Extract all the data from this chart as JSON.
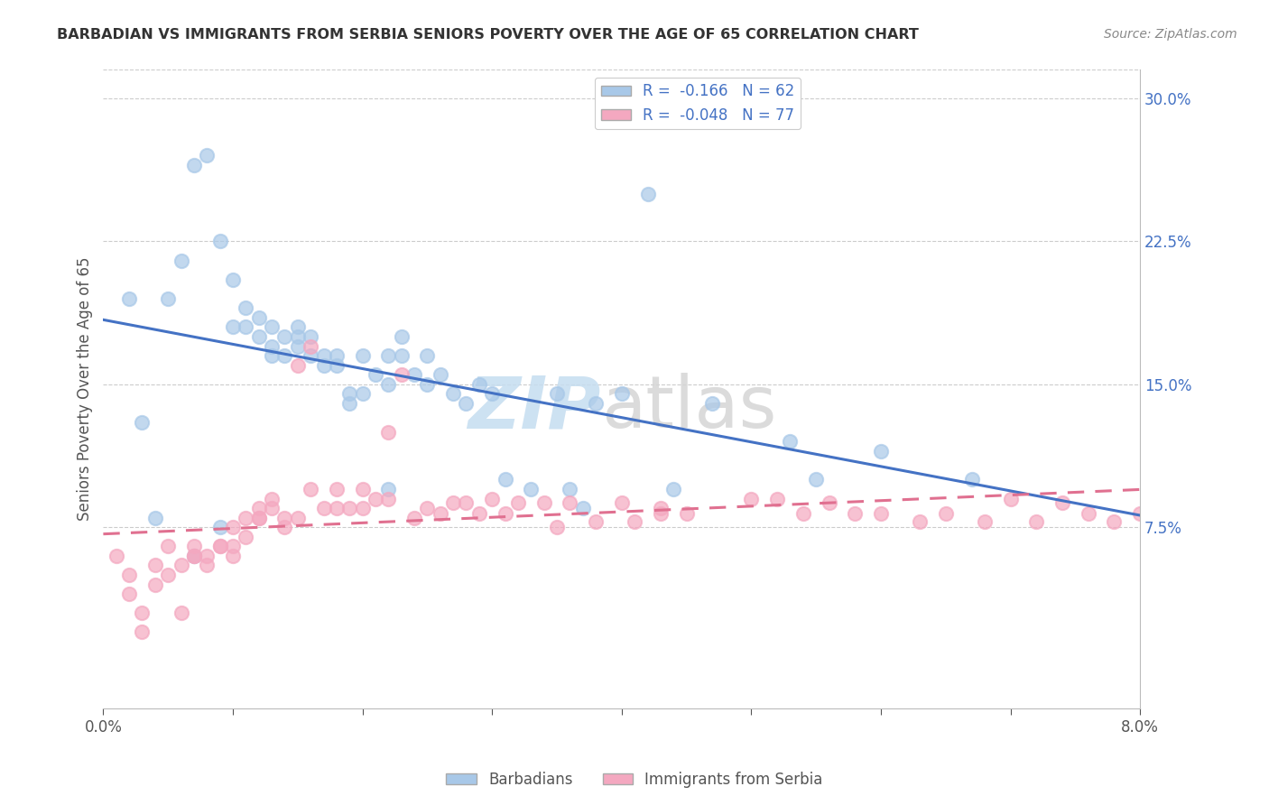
{
  "title": "BARBADIAN VS IMMIGRANTS FROM SERBIA SENIORS POVERTY OVER THE AGE OF 65 CORRELATION CHART",
  "source": "Source: ZipAtlas.com",
  "ylabel": "Seniors Poverty Over the Age of 65",
  "x_min": 0.0,
  "x_max": 0.08,
  "y_min": -0.02,
  "y_max": 0.315,
  "y_ticks_right": [
    0.075,
    0.15,
    0.225,
    0.3
  ],
  "y_tick_labels_right": [
    "7.5%",
    "15.0%",
    "22.5%",
    "30.0%"
  ],
  "legend_label_blue": "R =  -0.166   N = 62",
  "legend_label_pink": "R =  -0.048   N = 77",
  "blue_color": "#A8C8E8",
  "pink_color": "#F4A8C0",
  "line_blue": "#4472C4",
  "line_pink": "#E07090",
  "barbadians_x": [
    0.005,
    0.006,
    0.007,
    0.008,
    0.009,
    0.01,
    0.01,
    0.011,
    0.011,
    0.012,
    0.012,
    0.013,
    0.013,
    0.013,
    0.014,
    0.014,
    0.015,
    0.015,
    0.015,
    0.016,
    0.016,
    0.017,
    0.017,
    0.018,
    0.018,
    0.019,
    0.019,
    0.02,
    0.02,
    0.021,
    0.022,
    0.022,
    0.023,
    0.023,
    0.024,
    0.025,
    0.025,
    0.026,
    0.027,
    0.028,
    0.029,
    0.03,
    0.031,
    0.033,
    0.035,
    0.036,
    0.037,
    0.038,
    0.04,
    0.042,
    0.044,
    0.047,
    0.053,
    0.055,
    0.06,
    0.067,
    0.002,
    0.003,
    0.004,
    0.007,
    0.009,
    0.022
  ],
  "barbadians_y": [
    0.195,
    0.215,
    0.265,
    0.27,
    0.225,
    0.18,
    0.205,
    0.19,
    0.18,
    0.175,
    0.185,
    0.17,
    0.165,
    0.18,
    0.175,
    0.165,
    0.18,
    0.175,
    0.17,
    0.165,
    0.175,
    0.16,
    0.165,
    0.165,
    0.16,
    0.145,
    0.14,
    0.145,
    0.165,
    0.155,
    0.165,
    0.15,
    0.165,
    0.175,
    0.155,
    0.15,
    0.165,
    0.155,
    0.145,
    0.14,
    0.15,
    0.145,
    0.1,
    0.095,
    0.145,
    0.095,
    0.085,
    0.14,
    0.145,
    0.25,
    0.095,
    0.14,
    0.12,
    0.1,
    0.115,
    0.1,
    0.195,
    0.13,
    0.08,
    0.06,
    0.075,
    0.095
  ],
  "serbia_x": [
    0.001,
    0.002,
    0.002,
    0.003,
    0.003,
    0.004,
    0.004,
    0.005,
    0.005,
    0.006,
    0.006,
    0.007,
    0.007,
    0.007,
    0.008,
    0.008,
    0.009,
    0.009,
    0.01,
    0.01,
    0.01,
    0.011,
    0.011,
    0.012,
    0.012,
    0.012,
    0.013,
    0.013,
    0.014,
    0.014,
    0.015,
    0.015,
    0.016,
    0.016,
    0.017,
    0.018,
    0.018,
    0.019,
    0.02,
    0.02,
    0.021,
    0.022,
    0.022,
    0.023,
    0.024,
    0.025,
    0.026,
    0.027,
    0.028,
    0.029,
    0.03,
    0.031,
    0.032,
    0.034,
    0.036,
    0.038,
    0.04,
    0.041,
    0.043,
    0.045,
    0.05,
    0.052,
    0.054,
    0.056,
    0.058,
    0.06,
    0.063,
    0.065,
    0.068,
    0.07,
    0.072,
    0.074,
    0.076,
    0.078,
    0.08,
    0.035,
    0.043
  ],
  "serbia_y": [
    0.06,
    0.05,
    0.04,
    0.03,
    0.02,
    0.045,
    0.055,
    0.065,
    0.05,
    0.03,
    0.055,
    0.06,
    0.065,
    0.06,
    0.055,
    0.06,
    0.065,
    0.065,
    0.06,
    0.065,
    0.075,
    0.07,
    0.08,
    0.08,
    0.085,
    0.08,
    0.085,
    0.09,
    0.075,
    0.08,
    0.08,
    0.16,
    0.17,
    0.095,
    0.085,
    0.095,
    0.085,
    0.085,
    0.085,
    0.095,
    0.09,
    0.125,
    0.09,
    0.155,
    0.08,
    0.085,
    0.082,
    0.088,
    0.088,
    0.082,
    0.09,
    0.082,
    0.088,
    0.088,
    0.088,
    0.078,
    0.088,
    0.078,
    0.082,
    0.082,
    0.09,
    0.09,
    0.082,
    0.088,
    0.082,
    0.082,
    0.078,
    0.082,
    0.078,
    0.09,
    0.078,
    0.088,
    0.082,
    0.078,
    0.082,
    0.075,
    0.085
  ]
}
